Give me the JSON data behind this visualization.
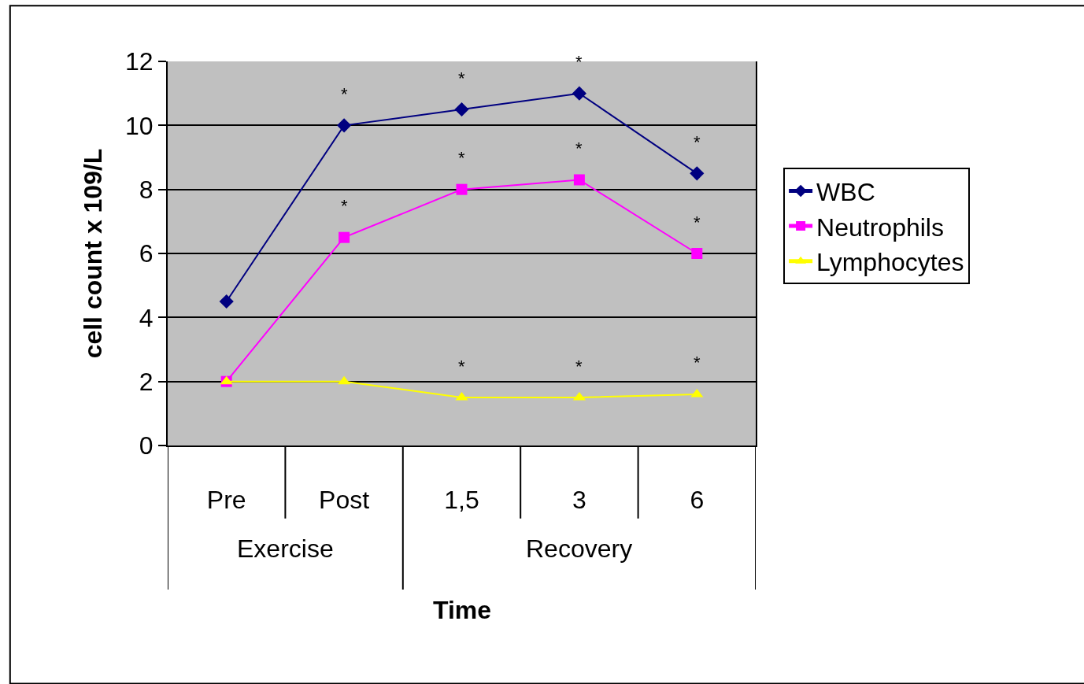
{
  "chart_data": {
    "type": "line",
    "xlabel": "Time",
    "ylabel": "cell count x 109/L",
    "categories": [
      "Pre",
      "Post",
      "1,5",
      "3",
      "6"
    ],
    "series": [
      {
        "name": "WBC",
        "color": "#000080",
        "marker": "diamond",
        "values": [
          4.5,
          10.0,
          10.5,
          11.0,
          8.5
        ]
      },
      {
        "name": "Neutrophils",
        "color": "#ff00ff",
        "marker": "square",
        "values": [
          2.0,
          6.5,
          8.0,
          8.3,
          6.0
        ]
      },
      {
        "name": "Lymphocytes",
        "color": "#ffff00",
        "marker": "triangle",
        "values": [
          2.0,
          2.0,
          1.5,
          1.5,
          1.6
        ]
      }
    ],
    "ylim": [
      0,
      12
    ],
    "yticks": [
      0,
      2,
      4,
      6,
      8,
      10,
      12
    ],
    "grid": "y",
    "legend": "right",
    "line_style": "solid",
    "annotations": [
      {
        "text": "*",
        "x": "Post",
        "y": 10.0
      },
      {
        "text": "*",
        "x": "Post",
        "y": 6.5
      },
      {
        "text": "*",
        "x": "1,5",
        "y": 10.5
      },
      {
        "text": "*",
        "x": "1,5",
        "y": 8.0
      },
      {
        "text": "*",
        "x": "1,5",
        "y": 1.5
      },
      {
        "text": "*",
        "x": "3",
        "y": 11.0
      },
      {
        "text": "*",
        "x": "3",
        "y": 8.3
      },
      {
        "text": "*",
        "x": "3",
        "y": 1.5
      },
      {
        "text": "*",
        "x": "6",
        "y": 8.5
      },
      {
        "text": "*",
        "x": "6",
        "y": 6.0
      },
      {
        "text": "*",
        "x": "6",
        "y": 1.6
      },
      "Exercise",
      "Recovery"
    ]
  }
}
